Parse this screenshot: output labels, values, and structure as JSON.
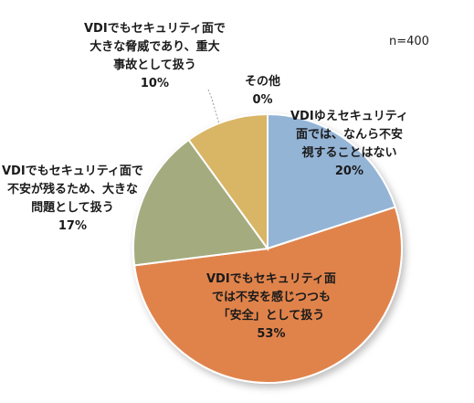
{
  "chart_data": {
    "type": "pie",
    "note": "n=400",
    "start_angle_deg": 0,
    "direction": "clockwise",
    "slices": [
      {
        "label_lines": [
          "VDIゆえセキュリティ",
          "面では、なんら不安",
          "視することはない"
        ],
        "value_label": "20%",
        "value": 20,
        "color": "#94b4d6"
      },
      {
        "label_lines": [
          "VDIでもセキュリティ面",
          "では不安を感じつつも",
          "「安全」として扱う"
        ],
        "value_label": "53%",
        "value": 53,
        "color": "#e0834c"
      },
      {
        "label_lines": [
          "VDIでもセキュリティ面で",
          "不安が残るため、大きな",
          "問題として扱う"
        ],
        "value_label": "17%",
        "value": 17,
        "color": "#a4ab7e"
      },
      {
        "label_lines": [
          "VDIでもセキュリティ面で",
          "大きな脅威であり、重大",
          "事故として扱う"
        ],
        "value_label": "10%",
        "value": 10,
        "color": "#d9b566"
      },
      {
        "label_lines": [
          "その他"
        ],
        "value_label": "0%",
        "value": 0,
        "color": "#bfbfbf"
      }
    ]
  }
}
